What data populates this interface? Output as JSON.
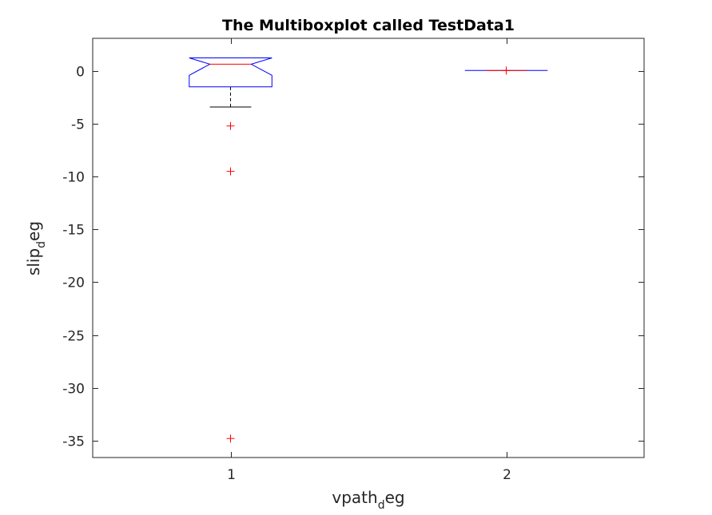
{
  "chart_data": {
    "type": "boxplot",
    "title": "The Multiboxplot called TestData1",
    "xlabel": {
      "main": "vpath",
      "sub": "d",
      "tail": "eg"
    },
    "ylabel": {
      "main": "slip",
      "sub": "d",
      "tail": "eg"
    },
    "categories": [
      "1",
      "2"
    ],
    "ylim": [
      -36.6,
      3.1
    ],
    "yticks": [
      0,
      -5,
      -10,
      -15,
      -20,
      -25,
      -30,
      -35
    ],
    "ytick_labels": [
      "0",
      "-5",
      "-10",
      "-15",
      "-20",
      "-25",
      "-30",
      "-35"
    ],
    "notched": true,
    "boxes": [
      {
        "category": "1",
        "q1": -1.5,
        "median": 0.65,
        "q3": 0.65,
        "notch_low": -0.4,
        "notch_high": 1.25,
        "whisker_low": -3.4,
        "whisker_high": 0.65,
        "outliers": [
          -5.2,
          -9.5,
          -34.8
        ]
      },
      {
        "category": "2",
        "q1": 0.05,
        "median": 0.05,
        "q3": 0.05,
        "notch_low": 0.05,
        "notch_high": 0.05,
        "whisker_low": 0.05,
        "whisker_high": 0.05,
        "outliers": [
          0.05
        ]
      }
    ],
    "grid": false,
    "colors": {
      "box": "#0000ff",
      "median": "#ff0000",
      "whisker": "#000000",
      "outlier": "#ff0000",
      "axis": "#262626"
    }
  }
}
